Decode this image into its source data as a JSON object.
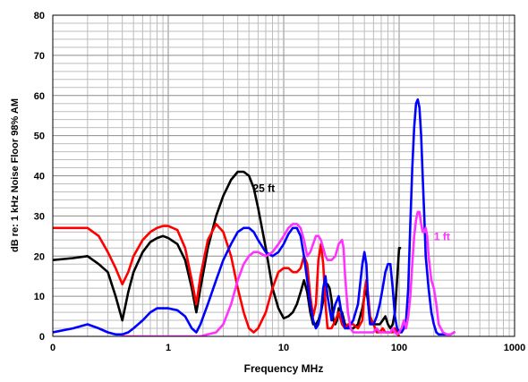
{
  "chart_data": {
    "type": "line",
    "title": "",
    "xlabel": "Frequency  MHz",
    "ylabel": "dB re: 1 kHz Noise Floor 98% AM",
    "x_scale": "log",
    "xlim": [
      0.1,
      1000
    ],
    "ylim": [
      0,
      80
    ],
    "x_ticks": [
      {
        "value": 0.1,
        "label": "0"
      },
      {
        "value": 1,
        "label": "1"
      },
      {
        "value": 10,
        "label": "10"
      },
      {
        "value": 100,
        "label": "100"
      },
      {
        "value": 1000,
        "label": "1000"
      }
    ],
    "y_ticks": [
      0,
      10,
      20,
      30,
      40,
      50,
      60,
      70,
      80
    ],
    "y_tick_labels": [
      "0",
      "10",
      "20",
      "30",
      "40",
      "50",
      "60",
      "70",
      "80"
    ],
    "grid": true,
    "annotations": [
      {
        "text": "25 ft",
        "x": 5.4,
        "y": 36,
        "color": "#000000"
      },
      {
        "text": "1 ft",
        "x": 200,
        "y": 24,
        "color": "#ff33ff"
      }
    ],
    "series": [
      {
        "color": "#000000",
        "points": [
          [
            0.1,
            19
          ],
          [
            0.15,
            19.5
          ],
          [
            0.2,
            20
          ],
          [
            0.25,
            18
          ],
          [
            0.3,
            16
          ],
          [
            0.35,
            10
          ],
          [
            0.4,
            4
          ],
          [
            0.45,
            11
          ],
          [
            0.5,
            16
          ],
          [
            0.6,
            21
          ],
          [
            0.7,
            23.5
          ],
          [
            0.8,
            24.5
          ],
          [
            0.9,
            25
          ],
          [
            1.0,
            24.5
          ],
          [
            1.2,
            23
          ],
          [
            1.4,
            19
          ],
          [
            1.6,
            12
          ],
          [
            1.75,
            6
          ],
          [
            1.9,
            12
          ],
          [
            2.2,
            22
          ],
          [
            2.6,
            30
          ],
          [
            3.0,
            35
          ],
          [
            3.5,
            39
          ],
          [
            4.0,
            41
          ],
          [
            4.5,
            41
          ],
          [
            5.0,
            40
          ],
          [
            5.5,
            37
          ],
          [
            6.0,
            32
          ],
          [
            7.0,
            22
          ],
          [
            8.0,
            12
          ],
          [
            9.0,
            7
          ],
          [
            10.0,
            4.5
          ],
          [
            11,
            5
          ],
          [
            12,
            6
          ],
          [
            13,
            8
          ],
          [
            14,
            11
          ],
          [
            15,
            14
          ],
          [
            16,
            11
          ],
          [
            17,
            6
          ],
          [
            18,
            3
          ],
          [
            19,
            3
          ],
          [
            20,
            4
          ],
          [
            21,
            6
          ],
          [
            22,
            9
          ],
          [
            23,
            12
          ],
          [
            24,
            13
          ],
          [
            25,
            12
          ],
          [
            26,
            9
          ],
          [
            27,
            4
          ],
          [
            28,
            3
          ],
          [
            29,
            4
          ],
          [
            30,
            7
          ],
          [
            32,
            6
          ],
          [
            34,
            3
          ],
          [
            36,
            2
          ],
          [
            40,
            2
          ],
          [
            44,
            3
          ],
          [
            48,
            7
          ],
          [
            50,
            10
          ],
          [
            52,
            12
          ],
          [
            54,
            8
          ],
          [
            56,
            4
          ],
          [
            60,
            3
          ],
          [
            64,
            3
          ],
          [
            68,
            3
          ],
          [
            72,
            4
          ],
          [
            76,
            5
          ],
          [
            80,
            3
          ],
          [
            84,
            2
          ],
          [
            88,
            3
          ],
          [
            92,
            6
          ],
          [
            96,
            14
          ],
          [
            100,
            22
          ],
          [
            102,
            22
          ]
        ]
      },
      {
        "color": "#ff0000",
        "points": [
          [
            0.1,
            27
          ],
          [
            0.15,
            27
          ],
          [
            0.2,
            27
          ],
          [
            0.25,
            25
          ],
          [
            0.3,
            21
          ],
          [
            0.35,
            17
          ],
          [
            0.4,
            13
          ],
          [
            0.45,
            16
          ],
          [
            0.5,
            20
          ],
          [
            0.6,
            24
          ],
          [
            0.7,
            26
          ],
          [
            0.8,
            27
          ],
          [
            0.9,
            27.5
          ],
          [
            1.0,
            27.5
          ],
          [
            1.2,
            26.5
          ],
          [
            1.4,
            22
          ],
          [
            1.6,
            14
          ],
          [
            1.75,
            8
          ],
          [
            1.9,
            15
          ],
          [
            2.2,
            24
          ],
          [
            2.6,
            28
          ],
          [
            3.0,
            26
          ],
          [
            3.5,
            20
          ],
          [
            4.0,
            12
          ],
          [
            4.5,
            6
          ],
          [
            5.0,
            2
          ],
          [
            5.5,
            1
          ],
          [
            6.0,
            2
          ],
          [
            7.0,
            6
          ],
          [
            8.0,
            12
          ],
          [
            9.0,
            16
          ],
          [
            10.0,
            17
          ],
          [
            11,
            17
          ],
          [
            12,
            16
          ],
          [
            13,
            16
          ],
          [
            14,
            17
          ],
          [
            15,
            20
          ],
          [
            16,
            18
          ],
          [
            17,
            10
          ],
          [
            18,
            5
          ],
          [
            19,
            8
          ],
          [
            20,
            19
          ],
          [
            21,
            23
          ],
          [
            22,
            18
          ],
          [
            23,
            8
          ],
          [
            24,
            2
          ],
          [
            26,
            2
          ],
          [
            28,
            4
          ],
          [
            30,
            6
          ],
          [
            32,
            3
          ],
          [
            34,
            2
          ],
          [
            36,
            3
          ],
          [
            40,
            3
          ],
          [
            44,
            2
          ],
          [
            48,
            4
          ],
          [
            50,
            11
          ],
          [
            52,
            14
          ],
          [
            54,
            10
          ],
          [
            56,
            5
          ],
          [
            60,
            3
          ],
          [
            64,
            1
          ],
          [
            68,
            1
          ],
          [
            72,
            2
          ],
          [
            76,
            1
          ],
          [
            80,
            1
          ],
          [
            84,
            1
          ],
          [
            88,
            1
          ],
          [
            92,
            2
          ],
          [
            96,
            1
          ],
          [
            100,
            0
          ]
        ]
      },
      {
        "color": "#0000ff",
        "points": [
          [
            0.1,
            1
          ],
          [
            0.15,
            2
          ],
          [
            0.2,
            3
          ],
          [
            0.25,
            2
          ],
          [
            0.3,
            1
          ],
          [
            0.35,
            0.5
          ],
          [
            0.4,
            0.5
          ],
          [
            0.45,
            1
          ],
          [
            0.5,
            2
          ],
          [
            0.6,
            4
          ],
          [
            0.7,
            6
          ],
          [
            0.8,
            7
          ],
          [
            0.9,
            7
          ],
          [
            1.0,
            7
          ],
          [
            1.2,
            6.5
          ],
          [
            1.4,
            5
          ],
          [
            1.6,
            2
          ],
          [
            1.75,
            1
          ],
          [
            1.9,
            3
          ],
          [
            2.2,
            8
          ],
          [
            2.6,
            14
          ],
          [
            3.0,
            19
          ],
          [
            3.5,
            23
          ],
          [
            4.0,
            26
          ],
          [
            4.5,
            27
          ],
          [
            5.0,
            27
          ],
          [
            5.5,
            26
          ],
          [
            6.0,
            24
          ],
          [
            7.0,
            21
          ],
          [
            8.0,
            20
          ],
          [
            9.0,
            21
          ],
          [
            10.0,
            23
          ],
          [
            11,
            25.5
          ],
          [
            12,
            27
          ],
          [
            13,
            27
          ],
          [
            14,
            25
          ],
          [
            15,
            20
          ],
          [
            16,
            14
          ],
          [
            17,
            8
          ],
          [
            18,
            4
          ],
          [
            19,
            2
          ],
          [
            20,
            3
          ],
          [
            21,
            6
          ],
          [
            22,
            12
          ],
          [
            23,
            15
          ],
          [
            24,
            10
          ],
          [
            26,
            4
          ],
          [
            28,
            8
          ],
          [
            30,
            10
          ],
          [
            32,
            5
          ],
          [
            34,
            2
          ],
          [
            36,
            2
          ],
          [
            38,
            3
          ],
          [
            40,
            4
          ],
          [
            44,
            8
          ],
          [
            48,
            18
          ],
          [
            50,
            21
          ],
          [
            52,
            18
          ],
          [
            54,
            8
          ],
          [
            56,
            3
          ],
          [
            60,
            3
          ],
          [
            64,
            5
          ],
          [
            68,
            8
          ],
          [
            72,
            12
          ],
          [
            76,
            16
          ],
          [
            80,
            18
          ],
          [
            84,
            18
          ],
          [
            88,
            12
          ],
          [
            92,
            5
          ],
          [
            96,
            2
          ],
          [
            100,
            1
          ],
          [
            105,
            1
          ],
          [
            110,
            2
          ],
          [
            115,
            4
          ],
          [
            120,
            12
          ],
          [
            125,
            28
          ],
          [
            130,
            42
          ],
          [
            135,
            52
          ],
          [
            140,
            58
          ],
          [
            145,
            59
          ],
          [
            150,
            57
          ],
          [
            155,
            50
          ],
          [
            160,
            40
          ],
          [
            165,
            30
          ],
          [
            170,
            20
          ],
          [
            180,
            12
          ],
          [
            190,
            6
          ],
          [
            200,
            3
          ],
          [
            210,
            1
          ],
          [
            220,
            0.5
          ],
          [
            240,
            0.5
          ],
          [
            260,
            0.5
          ],
          [
            280,
            0.5
          ],
          [
            300,
            1
          ]
        ]
      },
      {
        "color": "#ff33ff",
        "points": [
          [
            0.4,
            0
          ],
          [
            0.6,
            0
          ],
          [
            0.8,
            0
          ],
          [
            1.0,
            0
          ],
          [
            1.4,
            0
          ],
          [
            1.6,
            0
          ],
          [
            1.9,
            0
          ],
          [
            2.2,
            0.5
          ],
          [
            2.6,
            1
          ],
          [
            3.0,
            3
          ],
          [
            3.5,
            8
          ],
          [
            4.0,
            14
          ],
          [
            4.5,
            18
          ],
          [
            5.0,
            20
          ],
          [
            5.5,
            21
          ],
          [
            6.0,
            21
          ],
          [
            7.0,
            20
          ],
          [
            8.0,
            21
          ],
          [
            9.0,
            23
          ],
          [
            10.0,
            25
          ],
          [
            11,
            27
          ],
          [
            12,
            28
          ],
          [
            13,
            28
          ],
          [
            14,
            27
          ],
          [
            15,
            24
          ],
          [
            16,
            20
          ],
          [
            17,
            21
          ],
          [
            18,
            23
          ],
          [
            19,
            25
          ],
          [
            20,
            25
          ],
          [
            21,
            24
          ],
          [
            22,
            22
          ],
          [
            23,
            20
          ],
          [
            24,
            19
          ],
          [
            26,
            19
          ],
          [
            28,
            20
          ],
          [
            30,
            23
          ],
          [
            32,
            24
          ],
          [
            33,
            22
          ],
          [
            34,
            15
          ],
          [
            36,
            6
          ],
          [
            38,
            2
          ],
          [
            40,
            1
          ],
          [
            44,
            1
          ],
          [
            48,
            1
          ],
          [
            50,
            1
          ],
          [
            54,
            1
          ],
          [
            60,
            1
          ],
          [
            64,
            2
          ],
          [
            68,
            1
          ],
          [
            72,
            1
          ],
          [
            80,
            1
          ],
          [
            84,
            1
          ],
          [
            88,
            2
          ],
          [
            92,
            1
          ],
          [
            96,
            0.5
          ],
          [
            100,
            1
          ],
          [
            105,
            2
          ],
          [
            110,
            4
          ],
          [
            115,
            2
          ],
          [
            120,
            5
          ],
          [
            125,
            10
          ],
          [
            130,
            18
          ],
          [
            135,
            25
          ],
          [
            140,
            29
          ],
          [
            145,
            31
          ],
          [
            150,
            31
          ],
          [
            155,
            28
          ],
          [
            160,
            26
          ],
          [
            165,
            26
          ],
          [
            170,
            27
          ],
          [
            175,
            25
          ],
          [
            180,
            20
          ],
          [
            190,
            14
          ],
          [
            200,
            12
          ],
          [
            210,
            8
          ],
          [
            220,
            3
          ],
          [
            240,
            1
          ],
          [
            260,
            0.5
          ],
          [
            280,
            0.5
          ],
          [
            300,
            1
          ]
        ]
      }
    ]
  }
}
